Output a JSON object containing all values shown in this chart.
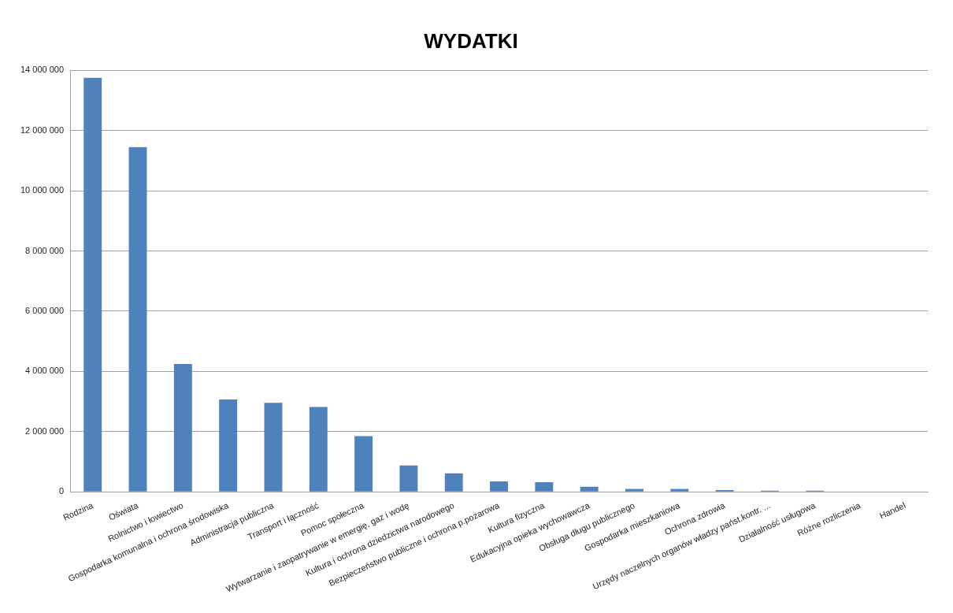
{
  "chart_data": {
    "type": "bar",
    "title": "WYDATKI",
    "categories": [
      "Rodzina",
      "Oświata",
      "Rolnictwo i łowiectwo",
      "Gospodarka komunalna i ochrona środowiska",
      "Administracja publiczna",
      "Transport i łączność",
      "Pomoc społeczna",
      "Wytwarzanie i zaopatrywanie w emergię, gaz i wodę",
      "Kultura i ochrona dziedzictwa narodowego",
      "Bezpieczeństwo publiczne i ochrona p.pożarowa",
      "Kultura fizyczna",
      "Edukacyjna opieka wychowawcza",
      "Obsługa długu publicznego",
      "Gospodarka mieszkaniowa",
      "Ochrona zdrowia",
      "Urzędy naczelnych organów władzy państ.kontr. ...",
      "Działalność usługowa",
      "Różne rozliczenia",
      "Handel"
    ],
    "values": [
      13750000,
      11450000,
      4250000,
      3070000,
      2960000,
      2820000,
      1850000,
      880000,
      620000,
      350000,
      320000,
      170000,
      100000,
      100000,
      60000,
      40000,
      40000,
      0,
      0
    ],
    "color": "#4f81bd",
    "ylim": [
      0,
      14000000
    ],
    "yticks": [
      {
        "value": 0,
        "label": "0"
      },
      {
        "value": 2000000,
        "label": "2 000 000"
      },
      {
        "value": 4000000,
        "label": "4 000 000"
      },
      {
        "value": 6000000,
        "label": "6 000 000"
      },
      {
        "value": 8000000,
        "label": "8 000 000"
      },
      {
        "value": 10000000,
        "label": "10 000 000"
      },
      {
        "value": 12000000,
        "label": "12 000 000"
      },
      {
        "value": 14000000,
        "label": "14 000 000"
      }
    ],
    "grid": "y"
  }
}
